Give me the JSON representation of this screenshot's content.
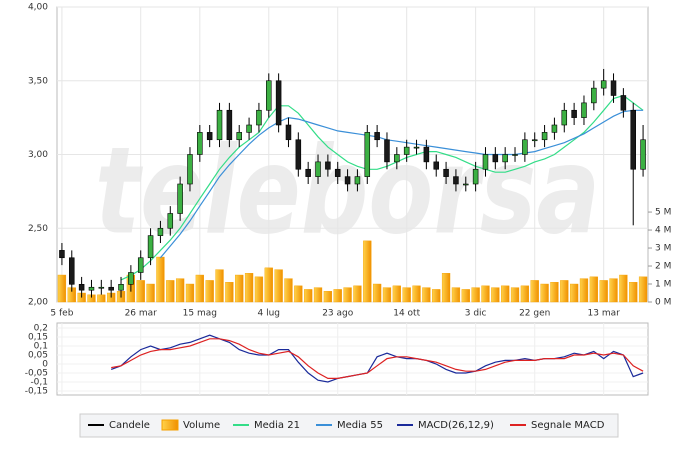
{
  "chart_data": {
    "type": "candlestick",
    "watermark": "teleborsa",
    "categories": [
      "5 feb",
      null,
      null,
      null,
      null,
      null,
      null,
      null,
      "26 mar",
      null,
      null,
      null,
      null,
      null,
      "15 mag",
      null,
      null,
      null,
      null,
      null,
      null,
      "4 lug",
      null,
      null,
      null,
      null,
      null,
      null,
      "23 ago",
      null,
      null,
      null,
      null,
      null,
      null,
      "14 ott",
      null,
      null,
      null,
      null,
      null,
      null,
      "3 dic",
      null,
      null,
      null,
      null,
      null,
      "22 gen",
      null,
      null,
      null,
      null,
      null,
      null,
      "13 mar",
      null,
      null,
      null,
      null
    ],
    "candles": {
      "name": "Candele",
      "color": "#000000",
      "up_color": "#3cb043",
      "down_color": "#1a1a1a",
      "open": [
        2.35,
        2.3,
        2.12,
        2.08,
        2.1,
        2.1,
        2.08,
        2.12,
        2.2,
        2.3,
        2.45,
        2.5,
        2.6,
        2.8,
        3.0,
        3.15,
        3.1,
        3.3,
        3.1,
        3.15,
        3.2,
        3.3,
        3.5,
        3.2,
        3.1,
        2.9,
        2.85,
        2.95,
        2.9,
        2.85,
        2.8,
        2.85,
        3.15,
        3.1,
        2.95,
        3.0,
        3.05,
        3.05,
        2.95,
        2.9,
        2.85,
        2.8,
        2.8,
        2.9,
        3.0,
        2.95,
        3.0,
        3.0,
        3.1,
        3.1,
        3.15,
        3.2,
        3.3,
        3.25,
        3.35,
        3.45,
        3.5,
        3.4,
        3.3,
        2.9
      ],
      "high": [
        2.4,
        2.35,
        2.17,
        2.15,
        2.15,
        2.15,
        2.17,
        2.25,
        2.35,
        2.5,
        2.55,
        2.65,
        2.85,
        3.05,
        3.2,
        3.2,
        3.35,
        3.35,
        3.2,
        3.25,
        3.35,
        3.55,
        3.55,
        3.25,
        3.15,
        2.95,
        3.0,
        3.0,
        2.95,
        2.9,
        2.9,
        3.2,
        3.2,
        3.15,
        3.05,
        3.1,
        3.1,
        3.1,
        3.0,
        2.95,
        2.9,
        2.85,
        2.95,
        3.05,
        3.05,
        3.05,
        3.05,
        3.15,
        3.15,
        3.2,
        3.25,
        3.35,
        3.35,
        3.4,
        3.5,
        3.58,
        3.55,
        3.45,
        3.35,
        3.2
      ],
      "low": [
        2.25,
        2.07,
        2.03,
        2.03,
        2.05,
        2.03,
        2.03,
        2.07,
        2.15,
        2.25,
        2.4,
        2.45,
        2.55,
        2.75,
        2.95,
        3.05,
        3.05,
        3.05,
        3.05,
        3.1,
        3.15,
        3.25,
        3.15,
        3.05,
        2.85,
        2.8,
        2.8,
        2.85,
        2.8,
        2.75,
        2.75,
        2.8,
        3.05,
        2.9,
        2.9,
        2.95,
        3.0,
        2.9,
        2.85,
        2.8,
        2.75,
        2.75,
        2.75,
        2.85,
        2.9,
        2.9,
        2.95,
        2.95,
        3.05,
        3.05,
        3.1,
        3.15,
        3.2,
        3.2,
        3.3,
        3.4,
        3.35,
        3.25,
        2.52,
        2.85
      ],
      "close": [
        2.3,
        2.12,
        2.08,
        2.1,
        2.1,
        2.08,
        2.12,
        2.2,
        2.3,
        2.45,
        2.5,
        2.6,
        2.8,
        3.0,
        3.15,
        3.1,
        3.3,
        3.1,
        3.15,
        3.2,
        3.3,
        3.5,
        3.2,
        3.1,
        2.9,
        2.85,
        2.95,
        2.9,
        2.85,
        2.8,
        2.85,
        3.15,
        3.1,
        2.95,
        3.0,
        3.05,
        3.05,
        2.95,
        2.9,
        2.85,
        2.8,
        2.8,
        2.9,
        3.0,
        2.95,
        3.0,
        3.0,
        3.1,
        3.1,
        3.15,
        3.2,
        3.3,
        3.25,
        3.35,
        3.45,
        3.5,
        3.4,
        3.3,
        2.9,
        3.1
      ]
    },
    "volume": {
      "name": "Volume",
      "color": "#f5a000",
      "axis": "y2",
      "values": [
        1.5,
        0.8,
        0.5,
        0.4,
        0.4,
        0.5,
        0.6,
        1.5,
        1.2,
        1.0,
        2.5,
        1.2,
        1.3,
        1.0,
        1.5,
        1.2,
        1.8,
        1.1,
        1.5,
        1.6,
        1.4,
        1.9,
        1.8,
        1.3,
        0.9,
        0.7,
        0.8,
        0.6,
        0.7,
        0.8,
        0.9,
        3.4,
        1.0,
        0.8,
        0.9,
        0.8,
        0.9,
        0.8,
        0.7,
        1.6,
        0.8,
        0.7,
        0.8,
        0.9,
        0.8,
        0.9,
        0.8,
        0.9,
        1.2,
        1.0,
        1.1,
        1.2,
        1.0,
        1.3,
        1.4,
        1.2,
        1.3,
        1.5,
        1.1,
        1.4
      ]
    },
    "series": [
      {
        "name": "Media 21",
        "color": "#33dd88",
        "values": [
          null,
          null,
          null,
          null,
          null,
          null,
          2.15,
          2.18,
          2.22,
          2.28,
          2.35,
          2.42,
          2.5,
          2.6,
          2.7,
          2.8,
          2.9,
          2.98,
          3.05,
          3.1,
          3.15,
          3.25,
          3.33,
          3.33,
          3.28,
          3.2,
          3.12,
          3.05,
          3.0,
          2.95,
          2.92,
          2.9,
          2.9,
          2.92,
          2.95,
          2.98,
          3.0,
          3.02,
          3.02,
          3.0,
          2.98,
          2.95,
          2.92,
          2.9,
          2.88,
          2.88,
          2.9,
          2.92,
          2.95,
          2.97,
          3.0,
          3.05,
          3.1,
          3.15,
          3.22,
          3.3,
          3.38,
          3.4,
          3.35,
          3.3
        ]
      },
      {
        "name": "Media 55",
        "color": "#3a8fd8",
        "values": [
          null,
          null,
          null,
          null,
          null,
          null,
          null,
          null,
          null,
          null,
          2.3,
          2.38,
          2.46,
          2.55,
          2.65,
          2.75,
          2.85,
          2.93,
          3.0,
          3.07,
          3.13,
          3.18,
          3.22,
          3.25,
          3.24,
          3.22,
          3.2,
          3.18,
          3.16,
          3.15,
          3.14,
          3.13,
          3.12,
          3.1,
          3.09,
          3.08,
          3.07,
          3.06,
          3.05,
          3.04,
          3.03,
          3.02,
          3.01,
          3.0,
          3.0,
          3.0,
          3.0,
          3.01,
          3.02,
          3.04,
          3.06,
          3.08,
          3.11,
          3.14,
          3.18,
          3.22,
          3.26,
          3.29,
          3.3,
          3.3
        ]
      }
    ],
    "ylim": [
      2,
      4
    ],
    "yticks": [
      {
        "value": 2,
        "label": "2,00"
      },
      {
        "value": 2.5,
        "label": "2,50"
      },
      {
        "value": 3,
        "label": "3,00"
      },
      {
        "value": 3.5,
        "label": "3,50"
      },
      {
        "value": 4,
        "label": "4,00"
      }
    ],
    "y2lim": [
      0,
      16.4
    ],
    "y2ticks": [
      {
        "value": 0,
        "label": "0 M"
      },
      {
        "value": 1,
        "label": "1 M"
      },
      {
        "value": 2,
        "label": "2 M"
      },
      {
        "value": 3,
        "label": "3 M"
      },
      {
        "value": 4,
        "label": "4 M"
      },
      {
        "value": 5,
        "label": "5 M"
      }
    ],
    "grid": true,
    "macd": {
      "ylim": [
        -0.15,
        0.2
      ],
      "yticks": [
        {
          "value": 0.2,
          "label": "0,2"
        },
        {
          "value": 0.15,
          "label": "0,15"
        },
        {
          "value": 0.1,
          "label": "0,1"
        },
        {
          "value": 0.05,
          "label": "0,05"
        },
        0,
        {
          "value": -0.05,
          "label": "-0,05"
        },
        {
          "value": -0.1,
          "label": "-0,1"
        },
        {
          "value": -0.15,
          "label": "-0,15"
        }
      ],
      "series": [
        {
          "name": "MACD(26,12,9)",
          "color": "#1a2a9a",
          "values": [
            null,
            null,
            null,
            null,
            null,
            -0.03,
            -0.01,
            0.04,
            0.08,
            0.1,
            0.08,
            0.09,
            0.11,
            0.12,
            0.14,
            0.16,
            0.14,
            0.12,
            0.08,
            0.06,
            0.05,
            0.05,
            0.08,
            0.08,
            0.01,
            -0.05,
            -0.09,
            -0.1,
            -0.08,
            -0.07,
            -0.06,
            -0.05,
            0.04,
            0.06,
            0.04,
            0.03,
            0.03,
            0.02,
            0.0,
            -0.03,
            -0.05,
            -0.05,
            -0.04,
            -0.01,
            0.01,
            0.02,
            0.02,
            0.03,
            0.02,
            0.03,
            0.03,
            0.04,
            0.06,
            0.05,
            0.07,
            0.03,
            0.07,
            0.05,
            -0.07,
            -0.05
          ]
        },
        {
          "name": "Segnale MACD",
          "color": "#dd2222",
          "values": [
            null,
            null,
            null,
            null,
            null,
            -0.02,
            -0.01,
            0.02,
            0.05,
            0.07,
            0.08,
            0.08,
            0.09,
            0.1,
            0.12,
            0.14,
            0.14,
            0.13,
            0.11,
            0.08,
            0.06,
            0.05,
            0.06,
            0.07,
            0.04,
            -0.01,
            -0.05,
            -0.08,
            -0.08,
            -0.07,
            -0.06,
            -0.05,
            -0.01,
            0.03,
            0.04,
            0.04,
            0.03,
            0.02,
            0.01,
            -0.01,
            -0.03,
            -0.04,
            -0.04,
            -0.03,
            -0.01,
            0.01,
            0.02,
            0.02,
            0.02,
            0.03,
            0.03,
            0.03,
            0.05,
            0.05,
            0.06,
            0.05,
            0.06,
            0.05,
            -0.01,
            -0.04
          ]
        }
      ]
    }
  }
}
